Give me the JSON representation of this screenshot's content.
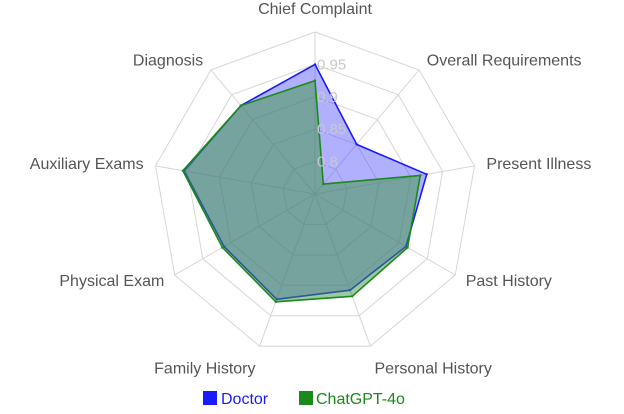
{
  "chart_data": {
    "type": "radar",
    "categories": [
      "Chief Complaint",
      "Overall Requirements",
      "Present Illness",
      "Past History",
      "Personal History",
      "Family History",
      "Physical Exam",
      "Auxiliary Exams",
      "Diagnosis"
    ],
    "rlim": [
      0.75,
      1.0
    ],
    "rticks": [
      0.8,
      0.85,
      0.9,
      0.95
    ],
    "rtick_labels": [
      "0.8",
      "0.85",
      "0.9",
      "0.95"
    ],
    "grid": true,
    "legend": "bottom",
    "series": [
      {
        "name": "Doctor",
        "color": "#1a1aff",
        "fill": "rgba(80,80,255,0.45)",
        "values": [
          0.95,
          0.85,
          0.925,
          0.912,
          0.908,
          0.923,
          0.912,
          0.955,
          0.928
        ]
      },
      {
        "name": "ChatGPT-4o",
        "color": "#1a8a1a",
        "fill": "rgba(60,150,60,0.5)",
        "values": [
          0.925,
          0.77,
          0.915,
          0.915,
          0.918,
          0.927,
          0.915,
          0.957,
          0.928
        ]
      }
    ]
  }
}
